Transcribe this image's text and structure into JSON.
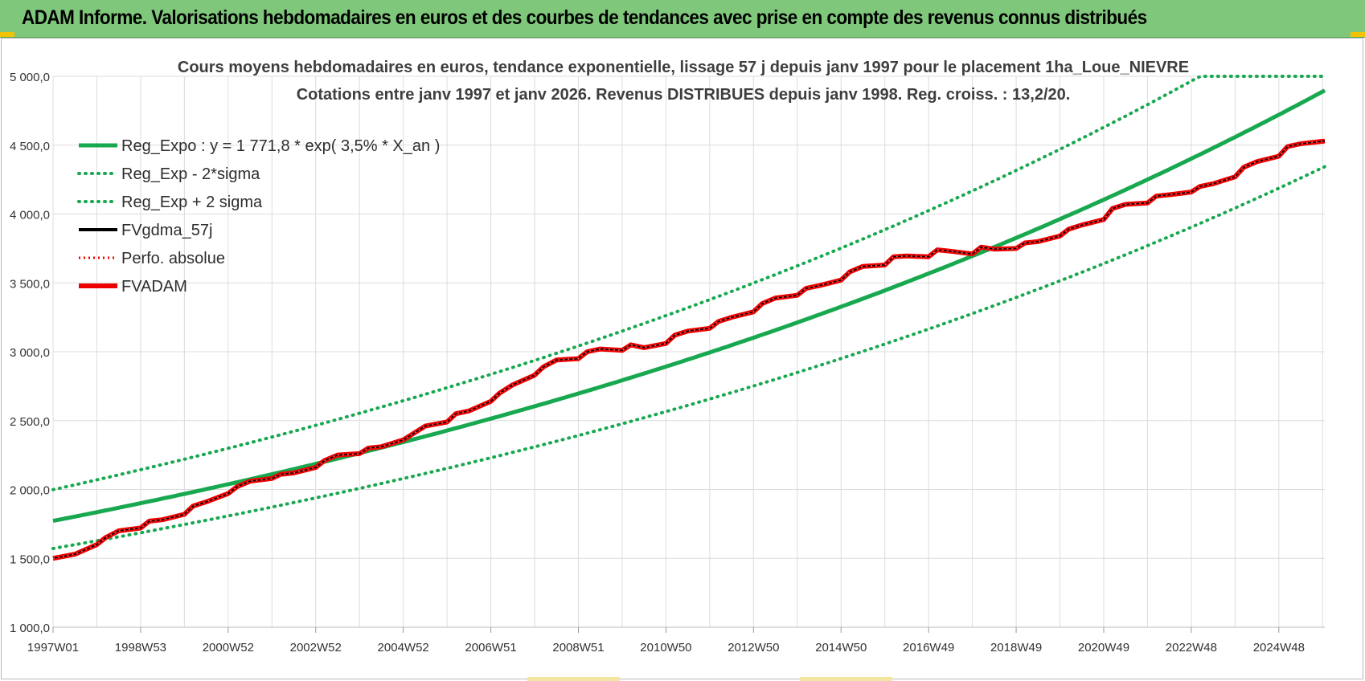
{
  "header": {
    "title": "ADAM Informe. Valorisations hebdomadaires en euros et des courbes de tendances avec prise en compte des revenus connus distribués"
  },
  "colors": {
    "banner": "#7fc87b",
    "reg": "#18a850",
    "fvgdma": "#000000",
    "fvadam": "#ee0000",
    "grid": "#dcdcdc"
  },
  "chart_data": {
    "type": "line",
    "title_line1": "Cours moyens hebdomadaires en euros, tendance exponentielle, lissage 57 j depuis janv 1997 pour le placement 1ha_Loue_NIEVRE",
    "title_line2": "Cotations entre janv 1997 et janv 2026. Revenus DISTRIBUES depuis janv 1998. Reg. croiss. : 13,2/20.",
    "x_tick_labels": [
      "1997W01",
      "1998W53",
      "2000W52",
      "2002W52",
      "2004W52",
      "2006W51",
      "2008W51",
      "2010W50",
      "2012W50",
      "2014W50",
      "2016W49",
      "2018W49",
      "2020W49",
      "2022W48",
      "2024W48"
    ],
    "x_ticks_years": [
      1997,
      1999,
      2001,
      2003,
      2005,
      2007,
      2009,
      2011,
      2013,
      2015,
      2017,
      2019,
      2021,
      2023,
      2025
    ],
    "xlim": [
      1997,
      2026.05
    ],
    "ylim": [
      1000,
      5000
    ],
    "y_ticks": [
      1000,
      1500,
      2000,
      2500,
      3000,
      3500,
      4000,
      4500,
      5000
    ],
    "y_tick_labels": [
      "1 000,0",
      "1 500,0",
      "2 000,0",
      "2 500,0",
      "3 000,0",
      "3 500,0",
      "4 000,0",
      "4 500,0",
      "5 000,0"
    ],
    "grid": true,
    "legend_position": "top-left",
    "reg_expo": {
      "a": 1771.8,
      "rate": 0.035
    },
    "series": [
      {
        "name": "Reg_Expo : y = 1 771,8 * exp( 3,5% *  X_an )",
        "style": "solid",
        "color": "#18a850"
      },
      {
        "name": "Reg_Exp - 2*sigma",
        "style": "dotted",
        "color": "#18a850",
        "factor": 0.887
      },
      {
        "name": "Reg_Exp + 2 sigma",
        "style": "dotted",
        "color": "#18a850",
        "factor": 1.128
      },
      {
        "name": "FVgdma_57j",
        "style": "solid",
        "color": "#000000"
      },
      {
        "name": "Perfo. absolue",
        "style": "dotted",
        "color": "#ee0000"
      },
      {
        "name": "FVADAM",
        "style": "solid",
        "color": "#ee0000"
      }
    ],
    "fvadam_points": [
      [
        1997.0,
        1500
      ],
      [
        1997.5,
        1530
      ],
      [
        1998.0,
        1600
      ],
      [
        1998.2,
        1650
      ],
      [
        1998.5,
        1700
      ],
      [
        1999.0,
        1720
      ],
      [
        1999.2,
        1770
      ],
      [
        1999.5,
        1780
      ],
      [
        2000.0,
        1820
      ],
      [
        2000.2,
        1880
      ],
      [
        2000.5,
        1910
      ],
      [
        2001.0,
        1970
      ],
      [
        2001.2,
        2020
      ],
      [
        2001.5,
        2060
      ],
      [
        2002.0,
        2080
      ],
      [
        2002.2,
        2110
      ],
      [
        2002.5,
        2120
      ],
      [
        2003.0,
        2160
      ],
      [
        2003.2,
        2210
      ],
      [
        2003.5,
        2250
      ],
      [
        2004.0,
        2260
      ],
      [
        2004.2,
        2300
      ],
      [
        2004.5,
        2310
      ],
      [
        2005.0,
        2360
      ],
      [
        2005.2,
        2400
      ],
      [
        2005.5,
        2460
      ],
      [
        2006.0,
        2490
      ],
      [
        2006.2,
        2550
      ],
      [
        2006.5,
        2570
      ],
      [
        2007.0,
        2640
      ],
      [
        2007.2,
        2700
      ],
      [
        2007.5,
        2760
      ],
      [
        2008.0,
        2830
      ],
      [
        2008.2,
        2890
      ],
      [
        2008.5,
        2940
      ],
      [
        2009.0,
        2950
      ],
      [
        2009.2,
        3000
      ],
      [
        2009.5,
        3020
      ],
      [
        2010.0,
        3010
      ],
      [
        2010.2,
        3050
      ],
      [
        2010.5,
        3030
      ],
      [
        2011.0,
        3060
      ],
      [
        2011.2,
        3120
      ],
      [
        2011.5,
        3150
      ],
      [
        2012.0,
        3170
      ],
      [
        2012.2,
        3220
      ],
      [
        2012.5,
        3250
      ],
      [
        2013.0,
        3290
      ],
      [
        2013.2,
        3350
      ],
      [
        2013.5,
        3390
      ],
      [
        2014.0,
        3410
      ],
      [
        2014.2,
        3460
      ],
      [
        2014.5,
        3480
      ],
      [
        2015.0,
        3520
      ],
      [
        2015.2,
        3580
      ],
      [
        2015.5,
        3620
      ],
      [
        2016.0,
        3630
      ],
      [
        2016.2,
        3690
      ],
      [
        2016.5,
        3695
      ],
      [
        2017.0,
        3690
      ],
      [
        2017.2,
        3740
      ],
      [
        2017.5,
        3730
      ],
      [
        2018.0,
        3710
      ],
      [
        2018.2,
        3760
      ],
      [
        2018.5,
        3745
      ],
      [
        2019.0,
        3750
      ],
      [
        2019.2,
        3790
      ],
      [
        2019.5,
        3800
      ],
      [
        2020.0,
        3840
      ],
      [
        2020.2,
        3890
      ],
      [
        2020.5,
        3920
      ],
      [
        2021.0,
        3960
      ],
      [
        2021.2,
        4040
      ],
      [
        2021.5,
        4070
      ],
      [
        2022.0,
        4080
      ],
      [
        2022.2,
        4130
      ],
      [
        2022.5,
        4140
      ],
      [
        2023.0,
        4160
      ],
      [
        2023.2,
        4200
      ],
      [
        2023.5,
        4220
      ],
      [
        2024.0,
        4270
      ],
      [
        2024.2,
        4340
      ],
      [
        2024.5,
        4380
      ],
      [
        2025.0,
        4420
      ],
      [
        2025.2,
        4490
      ],
      [
        2025.5,
        4510
      ],
      [
        2026.05,
        4530
      ]
    ]
  }
}
